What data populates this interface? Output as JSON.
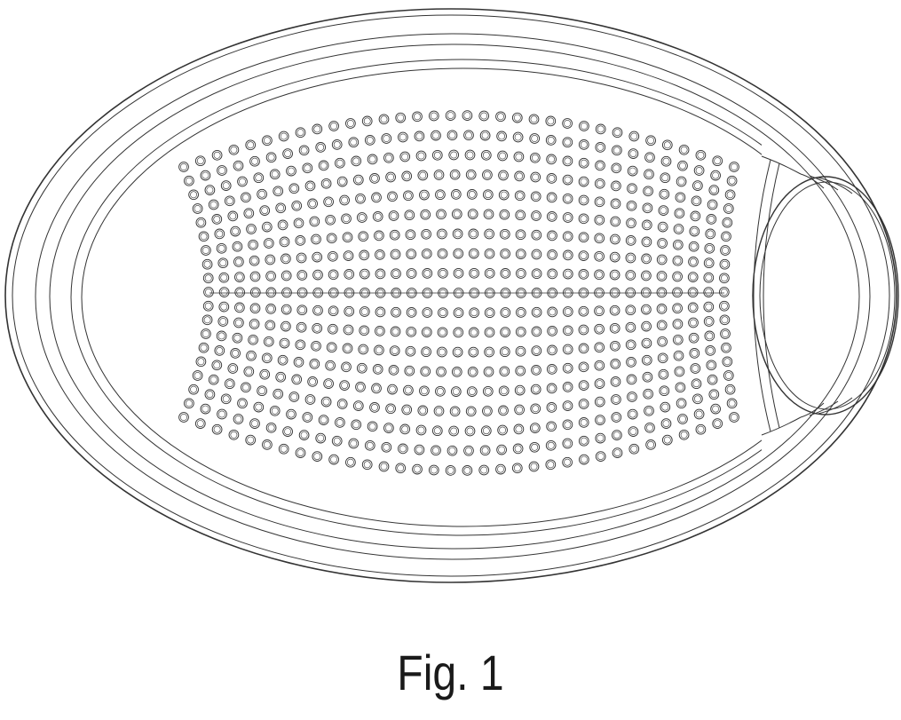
{
  "figure": {
    "caption": "Fig. 1"
  },
  "style": {
    "line_color": "#333333",
    "background": "#ffffff"
  }
}
